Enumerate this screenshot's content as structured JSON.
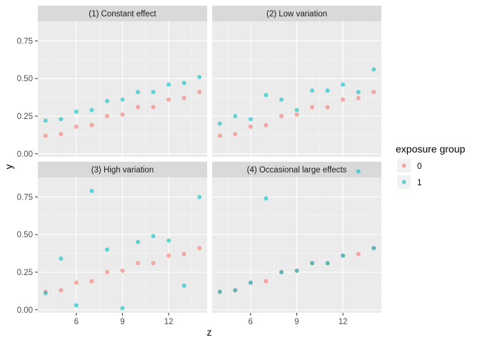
{
  "chart_data": {
    "type": "scatter",
    "xlabel": "z",
    "ylabel": "y",
    "xlim": [
      3.5,
      14.5
    ],
    "ylim": [
      -0.02,
      0.88
    ],
    "x_ticks": [
      6,
      9,
      12
    ],
    "y_ticks": [
      0.0,
      0.25,
      0.5,
      0.75
    ],
    "y_tick_labels": [
      "0.00",
      "0.25",
      "0.50",
      "0.75"
    ],
    "grid": true,
    "legend": {
      "title": "exposure group",
      "position": "right",
      "entries": [
        {
          "label": "0",
          "color": "#F8766D"
        },
        {
          "label": "1",
          "color": "#00BFC4"
        }
      ]
    },
    "panels": [
      {
        "title": "(1) Constant effect",
        "series": [
          {
            "name": "0",
            "color": "#F8766D",
            "x": [
              4,
              5,
              6,
              7,
              8,
              9,
              10,
              11,
              12,
              13,
              14
            ],
            "y": [
              0.12,
              0.13,
              0.18,
              0.19,
              0.25,
              0.26,
              0.31,
              0.31,
              0.36,
              0.37,
              0.41
            ]
          },
          {
            "name": "1",
            "color": "#00BFC4",
            "x": [
              4,
              5,
              6,
              7,
              8,
              9,
              10,
              11,
              12,
              13,
              14
            ],
            "y": [
              0.22,
              0.23,
              0.28,
              0.29,
              0.35,
              0.36,
              0.41,
              0.41,
              0.46,
              0.47,
              0.51
            ]
          }
        ]
      },
      {
        "title": "(2) Low variation",
        "series": [
          {
            "name": "0",
            "color": "#F8766D",
            "x": [
              4,
              5,
              6,
              7,
              8,
              9,
              10,
              11,
              12,
              13,
              14
            ],
            "y": [
              0.12,
              0.13,
              0.18,
              0.19,
              0.25,
              0.26,
              0.31,
              0.31,
              0.36,
              0.37,
              0.41
            ]
          },
          {
            "name": "1",
            "color": "#00BFC4",
            "x": [
              4,
              5,
              6,
              7,
              8,
              9,
              10,
              11,
              12,
              13,
              14
            ],
            "y": [
              0.2,
              0.25,
              0.23,
              0.39,
              0.36,
              0.29,
              0.42,
              0.42,
              0.46,
              0.41,
              0.56
            ]
          }
        ]
      },
      {
        "title": "(3) High variation",
        "series": [
          {
            "name": "0",
            "color": "#F8766D",
            "x": [
              4,
              5,
              6,
              7,
              8,
              9,
              10,
              11,
              12,
              13,
              14
            ],
            "y": [
              0.12,
              0.13,
              0.18,
              0.19,
              0.25,
              0.26,
              0.31,
              0.31,
              0.36,
              0.37,
              0.41
            ]
          },
          {
            "name": "1",
            "color": "#00BFC4",
            "x": [
              4,
              5,
              6,
              7,
              8,
              9,
              10,
              11,
              12,
              13,
              14
            ],
            "y": [
              0.11,
              0.34,
              0.03,
              0.79,
              0.4,
              0.01,
              0.45,
              0.49,
              0.46,
              0.16,
              0.75
            ]
          }
        ]
      },
      {
        "title": "(4) Occasional large effects",
        "series": [
          {
            "name": "0",
            "color": "#F8766D",
            "x": [
              4,
              5,
              6,
              7,
              8,
              9,
              10,
              11,
              12,
              13,
              14
            ],
            "y": [
              0.12,
              0.13,
              0.18,
              0.19,
              0.25,
              0.26,
              0.31,
              0.31,
              0.36,
              0.37,
              0.41
            ]
          },
          {
            "name": "1",
            "color": "#00BFC4",
            "x": [
              4,
              5,
              6,
              7,
              8,
              9,
              10,
              11,
              12,
              13,
              14
            ],
            "y": [
              0.12,
              0.13,
              0.18,
              0.74,
              0.25,
              0.26,
              0.31,
              0.31,
              0.36,
              0.92,
              0.41
            ]
          }
        ]
      }
    ]
  }
}
